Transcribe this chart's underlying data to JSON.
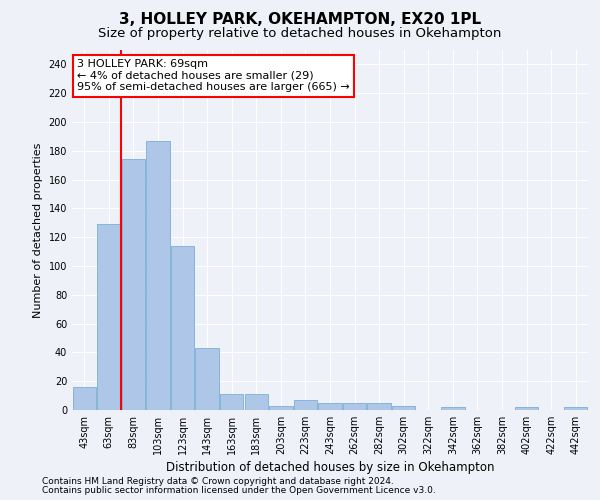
{
  "title": "3, HOLLEY PARK, OKEHAMPTON, EX20 1PL",
  "subtitle": "Size of property relative to detached houses in Okehampton",
  "xlabel": "Distribution of detached houses by size in Okehampton",
  "ylabel": "Number of detached properties",
  "bar_labels": [
    "43sqm",
    "63sqm",
    "83sqm",
    "103sqm",
    "123sqm",
    "143sqm",
    "163sqm",
    "183sqm",
    "203sqm",
    "223sqm",
    "243sqm",
    "262sqm",
    "282sqm",
    "302sqm",
    "322sqm",
    "342sqm",
    "362sqm",
    "382sqm",
    "402sqm",
    "422sqm",
    "442sqm"
  ],
  "bar_values": [
    16,
    129,
    174,
    187,
    114,
    43,
    11,
    11,
    3,
    7,
    5,
    5,
    5,
    3,
    0,
    2,
    0,
    0,
    2,
    0,
    2
  ],
  "bar_color": "#aec6e8",
  "bar_edge_color": "#7aafd4",
  "red_line_x": 1.5,
  "annotation_text": "3 HOLLEY PARK: 69sqm\n← 4% of detached houses are smaller (29)\n95% of semi-detached houses are larger (665) →",
  "annotation_box_color": "white",
  "annotation_box_edge": "red",
  "ylim": [
    0,
    250
  ],
  "yticks": [
    0,
    20,
    40,
    60,
    80,
    100,
    120,
    140,
    160,
    180,
    200,
    220,
    240
  ],
  "footnote1": "Contains HM Land Registry data © Crown copyright and database right 2024.",
  "footnote2": "Contains public sector information licensed under the Open Government Licence v3.0.",
  "background_color": "#eef2f8",
  "grid_color": "white",
  "title_fontsize": 11,
  "subtitle_fontsize": 9.5,
  "ylabel_fontsize": 8,
  "xlabel_fontsize": 8.5,
  "tick_fontsize": 7,
  "annotation_fontsize": 8,
  "footnote_fontsize": 6.5
}
